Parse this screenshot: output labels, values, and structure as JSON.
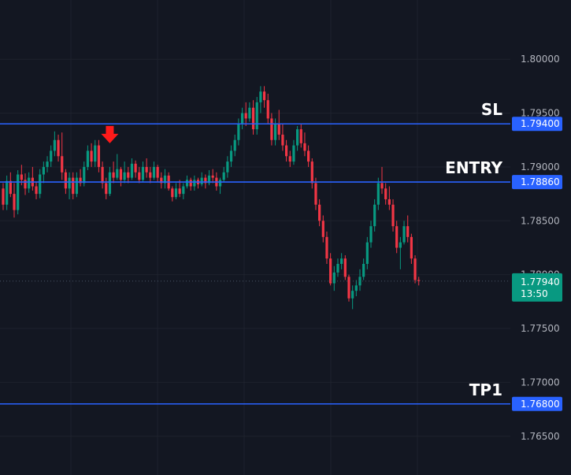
{
  "chart_data": {
    "type": "candlestick",
    "title": "",
    "xlabel": "",
    "ylabel": "",
    "ylim": [
      1.7614,
      1.8055
    ],
    "grid": true,
    "y_ticks": [
      "1.80000",
      "1.79500",
      "1.79000",
      "1.78500",
      "1.78000",
      "1.77500",
      "1.77000",
      "1.76500"
    ],
    "levels": [
      {
        "name": "SL",
        "price": "1.79400",
        "value": 1.794,
        "line_color": "#2962ff",
        "tag_color": "#2962ff"
      },
      {
        "name": "ENTRY",
        "price": "1.78860",
        "value": 1.7886,
        "line_color": "#2962ff",
        "tag_color": "#2962ff"
      },
      {
        "name": "TP1",
        "price": "1.76800",
        "value": 1.768,
        "line_color": "#2962ff",
        "tag_color": "#2962ff"
      }
    ],
    "current_price": {
      "price": "1.77940",
      "value": 1.7794,
      "countdown": "13:50",
      "tag_color": "#089981"
    },
    "marker": {
      "type": "down-arrow",
      "color": "#ff1a1a",
      "bar_index": 29,
      "value": 1.7922
    },
    "colors": {
      "up": "#089981",
      "down": "#f23645",
      "background": "#131722",
      "grid": "#1e222d"
    },
    "candles_ohlc": [
      [
        1.788,
        1.7885,
        1.786,
        1.7865
      ],
      [
        1.7865,
        1.7892,
        1.786,
        1.7887
      ],
      [
        1.7887,
        1.7895,
        1.7872,
        1.7875
      ],
      [
        1.7875,
        1.7885,
        1.7853,
        1.786
      ],
      [
        1.786,
        1.7897,
        1.7856,
        1.7893
      ],
      [
        1.7893,
        1.7902,
        1.7883,
        1.7888
      ],
      [
        1.7888,
        1.7894,
        1.7874,
        1.788
      ],
      [
        1.788,
        1.7895,
        1.7876,
        1.789
      ],
      [
        1.789,
        1.79,
        1.7878,
        1.7882
      ],
      [
        1.7882,
        1.7886,
        1.787,
        1.7875
      ],
      [
        1.7875,
        1.7898,
        1.7871,
        1.7893
      ],
      [
        1.7893,
        1.7905,
        1.7885,
        1.79
      ],
      [
        1.79,
        1.791,
        1.7895,
        1.7905
      ],
      [
        1.7905,
        1.792,
        1.79,
        1.7915
      ],
      [
        1.7915,
        1.7933,
        1.791,
        1.7925
      ],
      [
        1.7925,
        1.793,
        1.7905,
        1.791
      ],
      [
        1.791,
        1.7932,
        1.7888,
        1.7895
      ],
      [
        1.7895,
        1.7898,
        1.7875,
        1.788
      ],
      [
        1.788,
        1.7895,
        1.787,
        1.789
      ],
      [
        1.789,
        1.7895,
        1.787,
        1.7875
      ],
      [
        1.7875,
        1.7895,
        1.7872,
        1.789
      ],
      [
        1.789,
        1.7898,
        1.7882,
        1.7885
      ],
      [
        1.7885,
        1.7905,
        1.7882,
        1.79
      ],
      [
        1.79,
        1.792,
        1.7897,
        1.7915
      ],
      [
        1.7915,
        1.7922,
        1.79,
        1.7905
      ],
      [
        1.7905,
        1.7925,
        1.79,
        1.792
      ],
      [
        1.792,
        1.7925,
        1.7895,
        1.79
      ],
      [
        1.79,
        1.7905,
        1.788,
        1.7885
      ],
      [
        1.7885,
        1.789,
        1.787,
        1.7875
      ],
      [
        1.7875,
        1.79,
        1.7873,
        1.7895
      ],
      [
        1.7895,
        1.7905,
        1.7885,
        1.789
      ],
      [
        1.789,
        1.7912,
        1.7888,
        1.7898
      ],
      [
        1.7898,
        1.79,
        1.7882,
        1.7888
      ],
      [
        1.7888,
        1.7905,
        1.7885,
        1.7895
      ],
      [
        1.7895,
        1.79,
        1.7885,
        1.789
      ],
      [
        1.789,
        1.7908,
        1.7888,
        1.7903
      ],
      [
        1.7903,
        1.7906,
        1.789,
        1.7895
      ],
      [
        1.7895,
        1.79,
        1.7885,
        1.7888
      ],
      [
        1.7888,
        1.7905,
        1.7886,
        1.79
      ],
      [
        1.79,
        1.7908,
        1.789,
        1.7895
      ],
      [
        1.7895,
        1.79,
        1.7885,
        1.789
      ],
      [
        1.789,
        1.7905,
        1.7888,
        1.79
      ],
      [
        1.79,
        1.7902,
        1.7886,
        1.789
      ],
      [
        1.789,
        1.7895,
        1.788,
        1.7885
      ],
      [
        1.7885,
        1.7898,
        1.788,
        1.7892
      ],
      [
        1.7892,
        1.7895,
        1.7878,
        1.788
      ],
      [
        1.788,
        1.7882,
        1.7868,
        1.7872
      ],
      [
        1.7872,
        1.7885,
        1.787,
        1.788
      ],
      [
        1.788,
        1.7888,
        1.7872,
        1.7875
      ],
      [
        1.7875,
        1.7885,
        1.787,
        1.7882
      ],
      [
        1.7882,
        1.7892,
        1.788,
        1.7888
      ],
      [
        1.7888,
        1.789,
        1.7878,
        1.7882
      ],
      [
        1.7882,
        1.7892,
        1.7878,
        1.7888
      ],
      [
        1.7888,
        1.789,
        1.788,
        1.7884
      ],
      [
        1.7884,
        1.7895,
        1.7882,
        1.789
      ],
      [
        1.789,
        1.7893,
        1.788,
        1.7885
      ],
      [
        1.7885,
        1.7897,
        1.7883,
        1.7892
      ],
      [
        1.7892,
        1.7898,
        1.7885,
        1.789
      ],
      [
        1.789,
        1.7895,
        1.7878,
        1.7882
      ],
      [
        1.7882,
        1.789,
        1.7875,
        1.7888
      ],
      [
        1.7888,
        1.79,
        1.7886,
        1.7895
      ],
      [
        1.7895,
        1.791,
        1.789,
        1.7905
      ],
      [
        1.7905,
        1.792,
        1.79,
        1.7915
      ],
      [
        1.7915,
        1.793,
        1.791,
        1.7925
      ],
      [
        1.7925,
        1.7945,
        1.792,
        1.794
      ],
      [
        1.794,
        1.7955,
        1.7935,
        1.795
      ],
      [
        1.795,
        1.796,
        1.7938,
        1.7945
      ],
      [
        1.7945,
        1.796,
        1.7942,
        1.7955
      ],
      [
        1.7955,
        1.7962,
        1.793,
        1.7935
      ],
      [
        1.7935,
        1.7965,
        1.793,
        1.796
      ],
      [
        1.796,
        1.7975,
        1.795,
        1.797
      ],
      [
        1.797,
        1.7975,
        1.7955,
        1.7962
      ],
      [
        1.7962,
        1.7968,
        1.794,
        1.7945
      ],
      [
        1.7945,
        1.795,
        1.792,
        1.7925
      ],
      [
        1.7925,
        1.7945,
        1.792,
        1.794
      ],
      [
        1.794,
        1.7953,
        1.7925,
        1.793
      ],
      [
        1.793,
        1.794,
        1.7915,
        1.792
      ],
      [
        1.792,
        1.7925,
        1.7905,
        1.791
      ],
      [
        1.791,
        1.7915,
        1.79,
        1.7905
      ],
      [
        1.7905,
        1.7925,
        1.7902,
        1.792
      ],
      [
        1.792,
        1.7938,
        1.7915,
        1.7935
      ],
      [
        1.7935,
        1.794,
        1.7918,
        1.7922
      ],
      [
        1.7922,
        1.7932,
        1.791,
        1.7915
      ],
      [
        1.7915,
        1.792,
        1.79,
        1.7905
      ],
      [
        1.7905,
        1.7908,
        1.788,
        1.7885
      ],
      [
        1.7885,
        1.789,
        1.786,
        1.7865
      ],
      [
        1.7865,
        1.787,
        1.7845,
        1.785
      ],
      [
        1.785,
        1.7855,
        1.783,
        1.7835
      ],
      [
        1.7835,
        1.784,
        1.781,
        1.7815
      ],
      [
        1.7815,
        1.782,
        1.779,
        1.7792
      ],
      [
        1.7792,
        1.7808,
        1.7785,
        1.7802
      ],
      [
        1.7802,
        1.7815,
        1.7798,
        1.781
      ],
      [
        1.781,
        1.782,
        1.7805,
        1.7815
      ],
      [
        1.7815,
        1.7818,
        1.7795,
        1.7798
      ],
      [
        1.7798,
        1.78,
        1.7775,
        1.7778
      ],
      [
        1.7778,
        1.779,
        1.7768,
        1.7785
      ],
      [
        1.7785,
        1.7795,
        1.778,
        1.779
      ],
      [
        1.779,
        1.7805,
        1.7785,
        1.7798
      ],
      [
        1.7798,
        1.7815,
        1.7795,
        1.781
      ],
      [
        1.781,
        1.7835,
        1.7805,
        1.783
      ],
      [
        1.783,
        1.785,
        1.7825,
        1.7845
      ],
      [
        1.7845,
        1.787,
        1.784,
        1.7865
      ],
      [
        1.7865,
        1.789,
        1.786,
        1.7885
      ],
      [
        1.7885,
        1.79,
        1.7875,
        1.788
      ],
      [
        1.788,
        1.7885,
        1.7865,
        1.787
      ],
      [
        1.787,
        1.7882,
        1.786,
        1.7865
      ],
      [
        1.7865,
        1.787,
        1.784,
        1.7845
      ],
      [
        1.7845,
        1.785,
        1.782,
        1.7825
      ],
      [
        1.7825,
        1.7835,
        1.7805,
        1.783
      ],
      [
        1.783,
        1.785,
        1.7828,
        1.7845
      ],
      [
        1.7845,
        1.7855,
        1.783,
        1.7835
      ],
      [
        1.7835,
        1.7838,
        1.781,
        1.7815
      ],
      [
        1.7815,
        1.7818,
        1.7792,
        1.7795
      ],
      [
        1.7795,
        1.7798,
        1.779,
        1.7794
      ]
    ]
  }
}
